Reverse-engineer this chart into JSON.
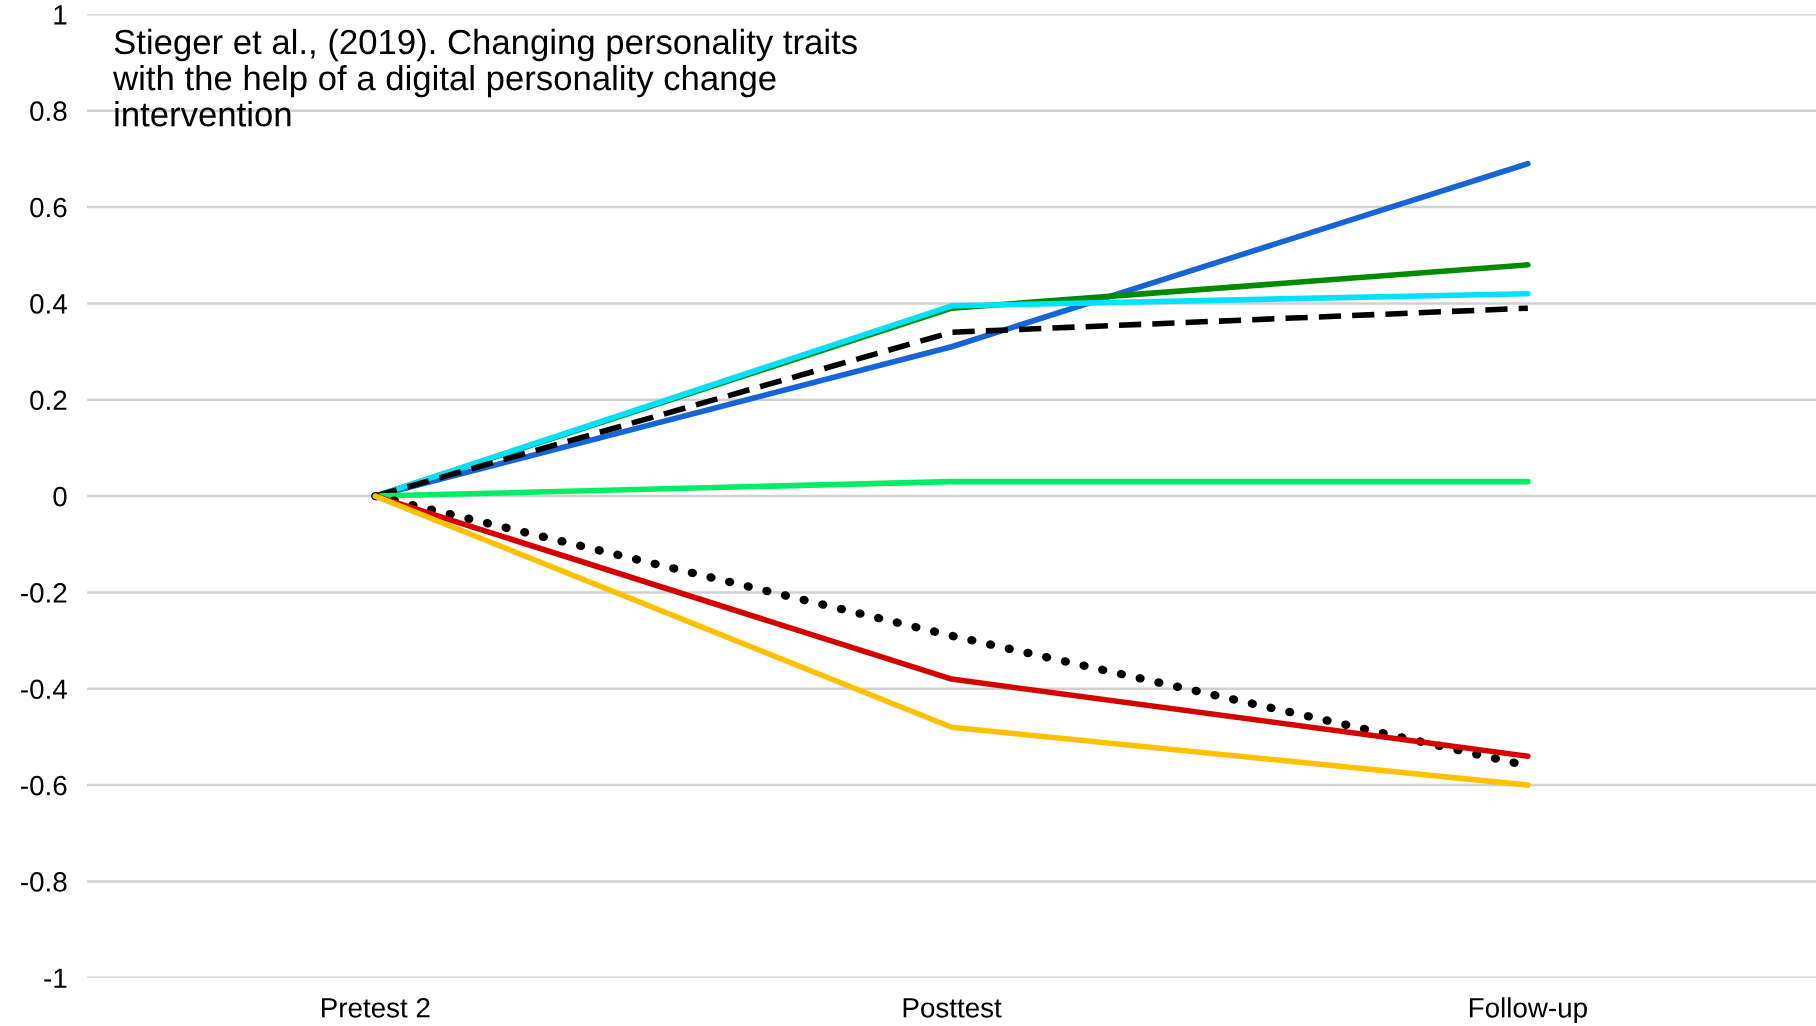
{
  "chart_data": {
    "type": "line",
    "categories": [
      "Pretest 2",
      "Posttest",
      "Follow-up"
    ],
    "series": [
      {
        "color": "#1565d8",
        "values": [
          0,
          0.31,
          0.69
        ],
        "line_style": "solid"
      },
      {
        "color": "#008a00",
        "values": [
          0,
          0.39,
          0.48
        ],
        "line_style": "solid"
      },
      {
        "color": "#00e1ff",
        "values": [
          0,
          0.395,
          0.42
        ],
        "line_style": "solid"
      },
      {
        "color": "#000000",
        "values": [
          0,
          0.34,
          0.39
        ],
        "line_style": "dashed"
      },
      {
        "color": "#00ee66",
        "values": [
          0,
          0.03,
          0.03
        ],
        "line_style": "solid"
      },
      {
        "color": "#000000",
        "values": [
          0,
          -0.29,
          -0.56
        ],
        "line_style": "dotted"
      },
      {
        "color": "#d40000",
        "values": [
          0,
          -0.38,
          -0.54
        ],
        "line_style": "solid"
      },
      {
        "color": "#ffc000",
        "values": [
          0,
          -0.48,
          -0.6
        ],
        "line_style": "solid"
      }
    ],
    "ylim": [
      -1,
      1
    ],
    "yticks": [
      -1,
      -0.8,
      -0.6,
      -0.4,
      -0.2,
      0,
      0.2,
      0.4,
      0.6,
      0.8,
      1
    ],
    "grid": "y",
    "annotations": [
      "Stieger et al., (2019). Changing personality traits with the help of a digital personality change intervention"
    ]
  }
}
